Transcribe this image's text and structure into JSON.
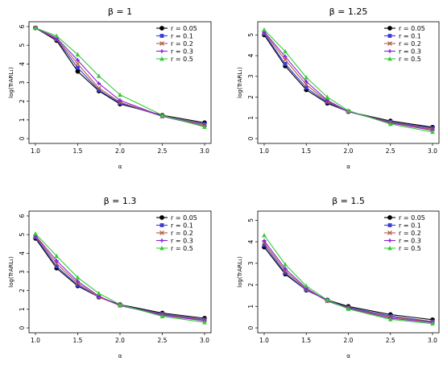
{
  "chart_data": [
    {
      "type": "line",
      "title": "β = 1",
      "xlabel": "α",
      "ylabel": "log(TrARL₁)",
      "x": [
        1.0,
        1.25,
        1.5,
        1.75,
        2.0,
        2.5,
        3.0
      ],
      "xticks": [
        "1.0",
        "1.5",
        "2.0",
        "2.5",
        "3.0"
      ],
      "yticks": [
        "0",
        "1",
        "2",
        "3",
        "4",
        "5",
        "6"
      ],
      "xlim": [
        1.0,
        3.0
      ],
      "ylim": [
        0,
        6
      ],
      "grid": false,
      "legend_position": "top-right",
      "series": [
        {
          "name": "r = 0.05",
          "color": "#000000",
          "marker": "circle",
          "values": [
            5.93,
            5.25,
            3.6,
            2.55,
            1.85,
            1.25,
            0.85
          ]
        },
        {
          "name": "r = 0.1",
          "color": "#3b3bd6",
          "marker": "square",
          "values": [
            5.93,
            5.3,
            3.8,
            2.6,
            1.9,
            1.2,
            0.78
          ]
        },
        {
          "name": "r = 0.2",
          "color": "#b05a3c",
          "marker": "x",
          "values": [
            5.93,
            5.35,
            4.0,
            2.7,
            1.95,
            1.2,
            0.72
          ]
        },
        {
          "name": "r = 0.3",
          "color": "#8a1fd8",
          "marker": "cross",
          "values": [
            5.93,
            5.4,
            4.2,
            2.95,
            2.05,
            1.2,
            0.65
          ]
        },
        {
          "name": "r = 0.5",
          "color": "#33cc33",
          "marker": "triangle",
          "values": [
            5.93,
            5.5,
            4.5,
            3.35,
            2.35,
            1.25,
            0.62
          ]
        }
      ]
    },
    {
      "type": "line",
      "title": "β = 1.25",
      "xlabel": "α",
      "ylabel": "log(TrARL₁)",
      "x": [
        1.0,
        1.25,
        1.5,
        1.75,
        2.0,
        2.5,
        3.0
      ],
      "xticks": [
        "1.0",
        "1.5",
        "2.0",
        "2.5",
        "3.0"
      ],
      "yticks": [
        "0",
        "1",
        "2",
        "3",
        "4",
        "5"
      ],
      "xlim": [
        1.0,
        3.0
      ],
      "ylim": [
        0,
        5.4
      ],
      "grid": false,
      "legend_position": "top-right",
      "series": [
        {
          "name": "r = 0.05",
          "color": "#000000",
          "marker": "circle",
          "values": [
            5.0,
            3.5,
            2.35,
            1.7,
            1.3,
            0.85,
            0.55
          ]
        },
        {
          "name": "r = 0.1",
          "color": "#3b3bd6",
          "marker": "square",
          "values": [
            5.05,
            3.6,
            2.45,
            1.75,
            1.3,
            0.8,
            0.5
          ]
        },
        {
          "name": "r = 0.2",
          "color": "#b05a3c",
          "marker": "x",
          "values": [
            5.1,
            3.8,
            2.6,
            1.8,
            1.3,
            0.78,
            0.45
          ]
        },
        {
          "name": "r = 0.3",
          "color": "#8a1fd8",
          "marker": "cross",
          "values": [
            5.15,
            3.95,
            2.75,
            1.85,
            1.3,
            0.75,
            0.4
          ]
        },
        {
          "name": "r = 0.5",
          "color": "#33cc33",
          "marker": "triangle",
          "values": [
            5.25,
            4.2,
            2.95,
            2.0,
            1.35,
            0.7,
            0.32
          ]
        }
      ]
    },
    {
      "type": "line",
      "title": "β = 1.3",
      "xlabel": "α",
      "ylabel": "log(TrARL₁)",
      "x": [
        1.0,
        1.25,
        1.5,
        1.75,
        2.0,
        2.5,
        3.0
      ],
      "xticks": [
        "1.0",
        "1.5",
        "2.0",
        "2.5",
        "3.0"
      ],
      "yticks": [
        "0",
        "1",
        "2",
        "3",
        "4",
        "5",
        "6"
      ],
      "xlim": [
        1.0,
        3.0
      ],
      "ylim": [
        0,
        6
      ],
      "grid": false,
      "legend_position": "top-right",
      "series": [
        {
          "name": "r = 0.05",
          "color": "#000000",
          "marker": "circle",
          "values": [
            4.8,
            3.2,
            2.25,
            1.65,
            1.25,
            0.8,
            0.52
          ]
        },
        {
          "name": "r = 0.1",
          "color": "#3b3bd6",
          "marker": "square",
          "values": [
            4.85,
            3.3,
            2.3,
            1.65,
            1.22,
            0.75,
            0.45
          ]
        },
        {
          "name": "r = 0.2",
          "color": "#b05a3c",
          "marker": "x",
          "values": [
            4.9,
            3.45,
            2.4,
            1.65,
            1.2,
            0.72,
            0.42
          ]
        },
        {
          "name": "r = 0.3",
          "color": "#8a1fd8",
          "marker": "cross",
          "values": [
            4.95,
            3.6,
            2.5,
            1.7,
            1.2,
            0.68,
            0.38
          ]
        },
        {
          "name": "r = 0.5",
          "color": "#33cc33",
          "marker": "triangle",
          "values": [
            5.05,
            3.85,
            2.7,
            1.85,
            1.25,
            0.62,
            0.3
          ]
        }
      ]
    },
    {
      "type": "line",
      "title": "β = 1.5",
      "xlabel": "α",
      "ylabel": "log(TrARL₁)",
      "x": [
        1.0,
        1.25,
        1.5,
        1.75,
        2.0,
        2.5,
        3.0
      ],
      "xticks": [
        "1.0",
        "1.5",
        "2.0",
        "2.5",
        "3.0"
      ],
      "yticks": [
        "0",
        "1",
        "2",
        "3",
        "4",
        "5"
      ],
      "xlim": [
        1.0,
        3.0
      ],
      "ylim": [
        0,
        5.2
      ],
      "grid": false,
      "legend_position": "top-right",
      "series": [
        {
          "name": "r = 0.05",
          "color": "#000000",
          "marker": "circle",
          "values": [
            3.75,
            2.5,
            1.75,
            1.3,
            1.0,
            0.62,
            0.38
          ]
        },
        {
          "name": "r = 0.1",
          "color": "#3b3bd6",
          "marker": "square",
          "values": [
            3.85,
            2.55,
            1.75,
            1.28,
            0.95,
            0.55,
            0.3
          ]
        },
        {
          "name": "r = 0.2",
          "color": "#b05a3c",
          "marker": "x",
          "values": [
            3.95,
            2.65,
            1.8,
            1.25,
            0.92,
            0.5,
            0.28
          ]
        },
        {
          "name": "r = 0.3",
          "color": "#8a1fd8",
          "marker": "cross",
          "values": [
            4.05,
            2.75,
            1.85,
            1.25,
            0.9,
            0.45,
            0.25
          ]
        },
        {
          "name": "r = 0.5",
          "color": "#33cc33",
          "marker": "triangle",
          "values": [
            4.3,
            2.95,
            1.95,
            1.3,
            0.88,
            0.4,
            0.2
          ]
        }
      ]
    }
  ]
}
